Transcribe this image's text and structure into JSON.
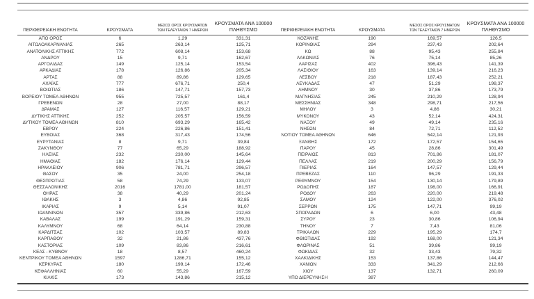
{
  "headers": {
    "region": "ΠΕΡΙΦΕΡΕΙΑΚΗ ΕΝΟΤΗΤΑ",
    "cases": "ΚΡΟΥΣΜΑΤΑ",
    "avg_line1": "ΜΕΣΟΣ ΟΡΟΣ ΚΡΟΥΣΜΑΤΩΝ",
    "avg_line2": "ΤΩΝ ΤΕΛΕΥΤΑΙΩΝ 7 ΗΜΕΡΩΝ",
    "per100k_line1": "ΚΡΟΥΣΜΑΤΑ ΑΝΑ 100000",
    "per100k_line2": "ΠΛΗΘΥΣΜΟ"
  },
  "left_rows": [
    [
      "ΑΠΟ ΟΡΟΣ",
      "6",
      "1,29",
      "331,31"
    ],
    [
      "ΑΙΤΩΛΟΑΚΑΡΝΑΝΙΑΣ",
      "265",
      "263,14",
      "125,71"
    ],
    [
      "ΑΝΑΤΟΛΙΚΗΣ ΑΤΤΙΚΗΣ",
      "772",
      "608,14",
      "153,68"
    ],
    [
      "ΑΝΔΡΟΥ",
      "15",
      "9,71",
      "162,67"
    ],
    [
      "ΑΡΓΟΛΙΔΑΣ",
      "149",
      "125,14",
      "153,54"
    ],
    [
      "ΑΡΚΑΔΙΑΣ",
      "178",
      "126,86",
      "205,34"
    ],
    [
      "ΑΡΤΑΣ",
      "88",
      "89,86",
      "129,65"
    ],
    [
      "ΑΧΑΪΑΣ",
      "777",
      "676,71",
      "250,4"
    ],
    [
      "ΒΟΙΩΤΙΑΣ",
      "186",
      "147,71",
      "157,73"
    ],
    [
      "ΒΟΡΕΙΟΥ ΤΟΜΕΑ ΑΘΗΝΩΝ",
      "955",
      "725,57",
      "161,4"
    ],
    [
      "ΓΡΕΒΕΝΩΝ",
      "28",
      "27,00",
      "88,17"
    ],
    [
      "ΔΡΑΜΑΣ",
      "127",
      "116,57",
      "129,21"
    ],
    [
      "ΔΥΤΙΚΗΣ ΑΤΤΙΚΗΣ",
      "252",
      "205,57",
      "156,59"
    ],
    [
      "ΔΥΤΙΚΟΥ ΤΟΜΕΑ ΑΘΗΝΩΝ",
      "810",
      "693,29",
      "165,42"
    ],
    [
      "ΕΒΡΟΥ",
      "224",
      "226,86",
      "151,41"
    ],
    [
      "ΕΥΒΟΙΑΣ",
      "368",
      "317,43",
      "174,56"
    ],
    [
      "ΕΥΡΥΤΑΝΙΑΣ",
      "8",
      "9,71",
      "39,84"
    ],
    [
      "ΖΑΚΥΝΘΟΥ",
      "77",
      "65,29",
      "188,92"
    ],
    [
      "ΗΛΕΙΑΣ",
      "232",
      "230,00",
      "145,64"
    ],
    [
      "ΗΜΑΘΙΑΣ",
      "182",
      "176,14",
      "129,44"
    ],
    [
      "ΗΡΑΚΛΕΙΟΥ",
      "906",
      "781,71",
      "296,57"
    ],
    [
      "ΘΑΣΟΥ",
      "35",
      "24,00",
      "254,18"
    ],
    [
      "ΘΕΣΠΡΩΤΙΑΣ",
      "58",
      "74,29",
      "133,07"
    ],
    [
      "ΘΕΣΣΑΛΟΝΙΚΗΣ",
      "2016",
      "1781,00",
      "181,57"
    ],
    [
      "ΘΗΡΑΣ",
      "38",
      "40,29",
      "201,24"
    ],
    [
      "ΙΘΑΚΗΣ",
      "3",
      "4,86",
      "92,85"
    ],
    [
      "ΙΚΑΡΙΑΣ",
      "9",
      "5,14",
      "91,07"
    ],
    [
      "ΙΩΑΝΝΙΝΩΝ",
      "357",
      "339,86",
      "212,63"
    ],
    [
      "ΚΑΒΑΛΑΣ",
      "199",
      "191,29",
      "159,31"
    ],
    [
      "ΚΑΛΥΜΝΟΥ",
      "68",
      "64,14",
      "230,88"
    ],
    [
      "ΚΑΡΔΙΤΣΑΣ",
      "102",
      "103,57",
      "89,83"
    ],
    [
      "ΚΑΡΠΑΘΟΥ",
      "32",
      "21,86",
      "437,76"
    ],
    [
      "ΚΑΣΤΟΡΙΑΣ",
      "109",
      "83,86",
      "216,61"
    ],
    [
      "ΚΕΑΣ - ΚΥΘΝΟΥ",
      "18",
      "8,57",
      "460,24"
    ],
    [
      "ΚΕΝΤΡΙΚΟΥ ΤΟΜΕΑ ΑΘΗΝΩΝ",
      "1597",
      "1286,71",
      "155,12"
    ],
    [
      "ΚΕΡΚΥΡΑΣ",
      "180",
      "199,14",
      "172,46"
    ],
    [
      "ΚΕΦΑΛΛΗΝΙΑΣ",
      "60",
      "55,29",
      "167,59"
    ],
    [
      "ΚΙΛΚΙΣ",
      "173",
      "143,86",
      "215,12"
    ]
  ],
  "right_rows": [
    [
      "ΚΟΖΑΝΗΣ",
      "190",
      "169,57",
      "126,5"
    ],
    [
      "ΚΟΡΙΝΘΙΑΣ",
      "294",
      "237,43",
      "202,64"
    ],
    [
      "ΚΩ",
      "88",
      "95,43",
      "255,84"
    ],
    [
      "ΛΑΚΩΝΙΑΣ",
      "76",
      "75,14",
      "85,26"
    ],
    [
      "ΛΑΡΙΣΑΣ",
      "402",
      "396,43",
      "141,39"
    ],
    [
      "ΛΑΣΙΘΙΟΥ",
      "163",
      "139,14",
      "216,23"
    ],
    [
      "ΛΕΣΒΟΥ",
      "218",
      "187,43",
      "252,21"
    ],
    [
      "ΛΕΥΚΑΔΑΣ",
      "47",
      "51,29",
      "198,37"
    ],
    [
      "ΛΗΜΝΟΥ",
      "30",
      "37,86",
      "173,79"
    ],
    [
      "ΜΑΓΝΗΣΙΑΣ",
      "245",
      "210,29",
      "128,94"
    ],
    [
      "ΜΕΣΣΗΝΙΑΣ",
      "348",
      "298,71",
      "217,56"
    ],
    [
      "ΜΗΛΟΥ",
      "3",
      "4,86",
      "30,21"
    ],
    [
      "ΜΥΚΟΝΟΥ",
      "43",
      "52,14",
      "424,31"
    ],
    [
      "ΝΑΞΟΥ",
      "49",
      "49,14",
      "235,16"
    ],
    [
      "ΝΗΣΩΝ",
      "84",
      "72,71",
      "112,52"
    ],
    [
      "ΝΟΤΙΟΥ ΤΟΜΕΑ ΑΘΗΝΩΝ",
      "646",
      "542,14",
      "121,93"
    ],
    [
      "ΞΑΝΘΗΣ",
      "172",
      "172,57",
      "154,65"
    ],
    [
      "ΠΑΡΟΥ",
      "45",
      "28,86",
      "301,49"
    ],
    [
      "ΠΕΙΡΑΙΩΣ",
      "813",
      "701,86",
      "181,07"
    ],
    [
      "ΠΕΛΛΑΣ",
      "219",
      "200,29",
      "156,79"
    ],
    [
      "ΠΙΕΡΙΑΣ",
      "164",
      "147,57",
      "129,44"
    ],
    [
      "ΠΡΕΒΕΖΑΣ",
      "110",
      "96,29",
      "191,33"
    ],
    [
      "ΡΕΘΥΜΝΟΥ",
      "154",
      "130,14",
      "179,89"
    ],
    [
      "ΡΟΔΟΠΗΣ",
      "187",
      "198,00",
      "166,91"
    ],
    [
      "ΡΟΔΟΥ",
      "263",
      "220,00",
      "219,48"
    ],
    [
      "ΣΑΜΟΥ",
      "124",
      "122,00",
      "376,02"
    ],
    [
      "ΣΕΡΡΩΝ",
      "175",
      "147,71",
      "99,19"
    ],
    [
      "ΣΠΟΡΑΔΩΝ",
      "6",
      "6,00",
      "43,48"
    ],
    [
      "ΣΥΡΟΥ",
      "23",
      "30,86",
      "106,94"
    ],
    [
      "ΤΗΝΟΥ",
      "7",
      "7,43",
      "81,06"
    ],
    [
      "ΤΡΙΚΑΛΩΝ",
      "229",
      "195,29",
      "174,7"
    ],
    [
      "ΦΘΙΩΤΙΔΑΣ",
      "192",
      "168,00",
      "121,34"
    ],
    [
      "ΦΛΩΡΙΝΑΣ",
      "51",
      "39,86",
      "99,19"
    ],
    [
      "ΦΩΚΙΔΑΣ",
      "32",
      "33,43",
      "79,32"
    ],
    [
      "ΧΑΛΚΙΔΙΚΗΣ",
      "153",
      "137,86",
      "144,47"
    ],
    [
      "ΧΑΝΙΩΝ",
      "333",
      "341,29",
      "212,66"
    ],
    [
      "ΧΙΟΥ",
      "137",
      "132,71",
      "260,09"
    ],
    [
      "ΥΠΟ ΔΙΕΡΕΥΝΗΣΗ",
      "387",
      "",
      ""
    ]
  ]
}
